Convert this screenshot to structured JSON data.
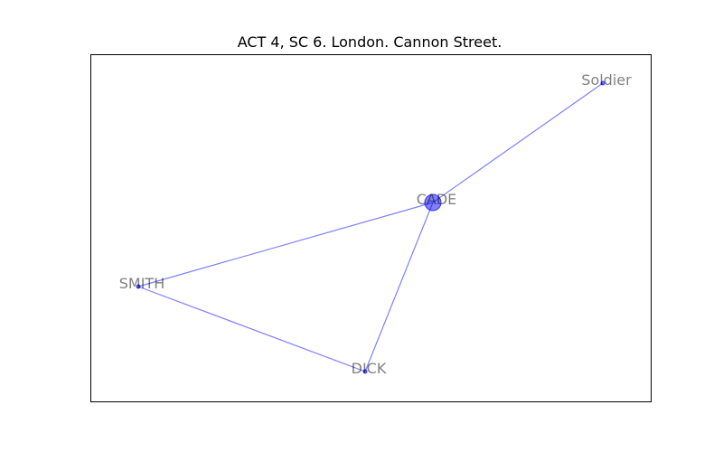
{
  "title": "ACT 4, SC 6. London. Cannon Street.",
  "colors": {
    "edge": "#0000ff",
    "node": "#0000ff",
    "label": "#000000",
    "frame": "#000000"
  },
  "nodes": [
    {
      "id": "CADE",
      "label": "CADE",
      "size": "large"
    },
    {
      "id": "Soldier",
      "label": "Soldier",
      "size": "small"
    },
    {
      "id": "SMITH",
      "label": "SMITH",
      "size": "small"
    },
    {
      "id": "DICK",
      "label": "DICK",
      "size": "small"
    }
  ],
  "edges": [
    {
      "source": "CADE",
      "target": "Soldier"
    },
    {
      "source": "CADE",
      "target": "SMITH"
    },
    {
      "source": "CADE",
      "target": "DICK"
    },
    {
      "source": "SMITH",
      "target": "DICK"
    }
  ]
}
